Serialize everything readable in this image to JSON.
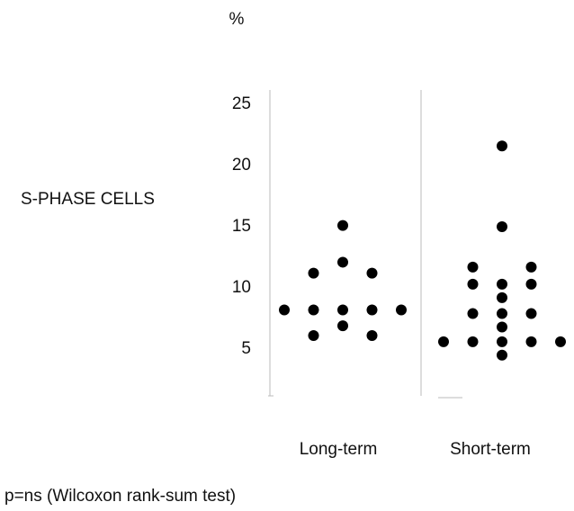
{
  "chart_data": {
    "type": "strip",
    "y_unit": "%",
    "y_label": "S-PHASE CELLS",
    "categories": [
      "Long-term",
      "Short-term"
    ],
    "values": [
      [
        8.2,
        8.2,
        8.2,
        8.2,
        8.2,
        6.1,
        6.1,
        6.9,
        11.2,
        11.2,
        12.1,
        15.1
      ],
      [
        21.6,
        15.0,
        11.7,
        11.7,
        10.3,
        10.3,
        10.3,
        9.2,
        7.9,
        7.9,
        7.9,
        6.8,
        5.6,
        5.6,
        5.6,
        5.6,
        5.6,
        4.5
      ]
    ],
    "color": "#000000",
    "ylim": [
      1,
      26
    ],
    "yticks": [
      5,
      10,
      15,
      20,
      25
    ],
    "footnote": "p=ns (Wilcoxon rank-sum test)"
  }
}
